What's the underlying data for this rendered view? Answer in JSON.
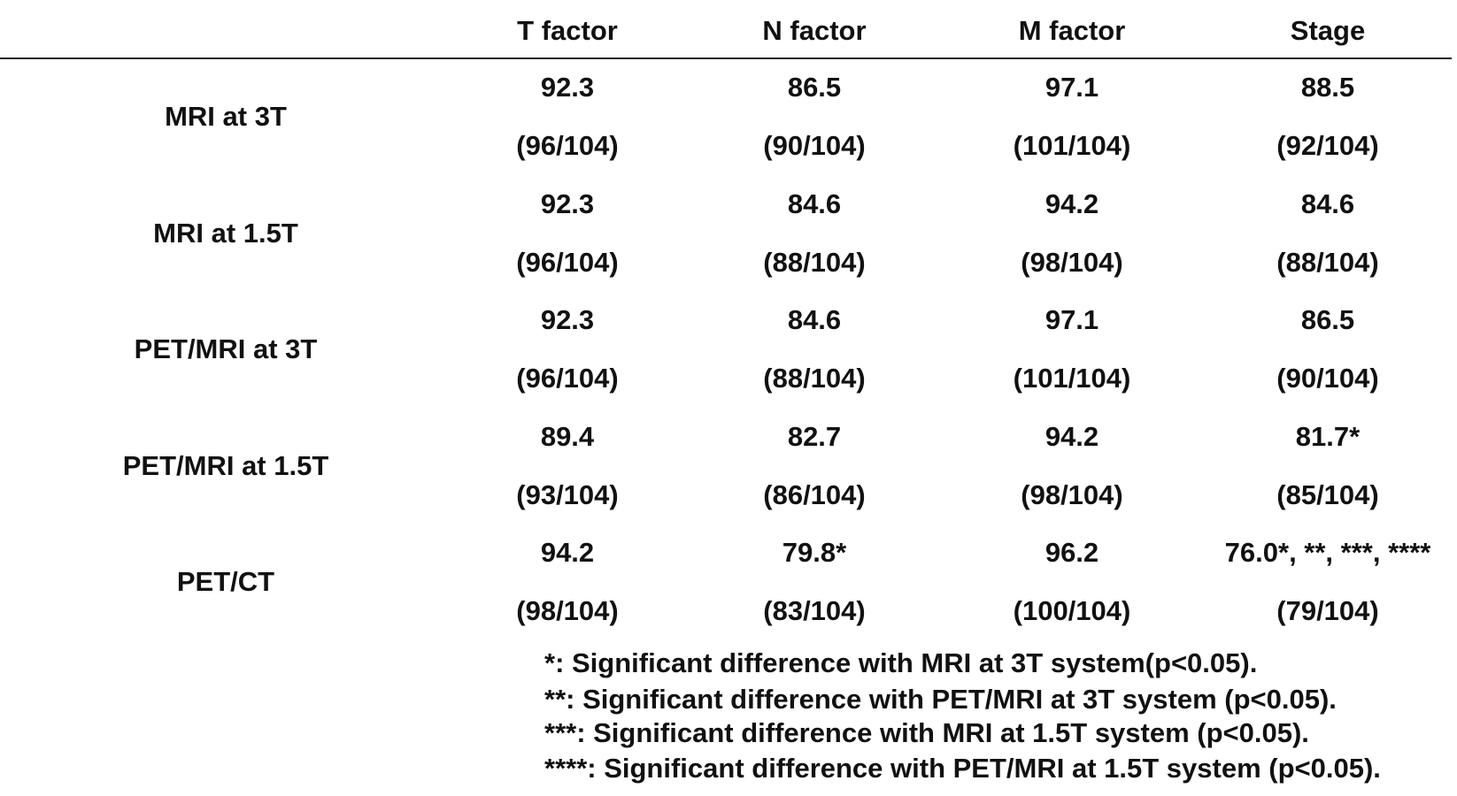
{
  "table": {
    "headers": [
      "T factor",
      "N factor",
      "M factor",
      "Stage"
    ],
    "rows": [
      {
        "label": "MRI at 3T",
        "values": [
          "92.3",
          "86.5",
          "97.1",
          "88.5"
        ],
        "counts": [
          "(96/104)",
          "(90/104)",
          "(101/104)",
          "(92/104)"
        ]
      },
      {
        "label": "MRI at 1.5T",
        "values": [
          "92.3",
          "84.6",
          "94.2",
          "84.6"
        ],
        "counts": [
          "(96/104)",
          "(88/104)",
          "(98/104)",
          "(88/104)"
        ]
      },
      {
        "label": "PET/MRI at 3T",
        "values": [
          "92.3",
          "84.6",
          "97.1",
          "86.5"
        ],
        "counts": [
          "(96/104)",
          "(88/104)",
          "(101/104)",
          "(90/104)"
        ]
      },
      {
        "label": "PET/MRI at 1.5T",
        "values": [
          "89.4",
          "82.7",
          "94.2",
          "81.7*"
        ],
        "counts": [
          "(93/104)",
          "(86/104)",
          "(98/104)",
          "(85/104)"
        ]
      },
      {
        "label": "PET/CT",
        "values": [
          "94.2",
          "79.8*",
          "96.2",
          "76.0*, **, ***, ****"
        ],
        "counts": [
          "(98/104)",
          "(83/104)",
          "(100/104)",
          "(79/104)"
        ]
      }
    ],
    "footnotes": [
      "*: Significant difference with MRI at 3T system(p<0.05).",
      "**: Significant difference with PET/MRI at 3T system (p<0.05).",
      "***: Significant difference with MRI at 1.5T system (p<0.05).",
      "****: Significant difference with PET/MRI at 1.5T system (p<0.05)."
    ]
  }
}
